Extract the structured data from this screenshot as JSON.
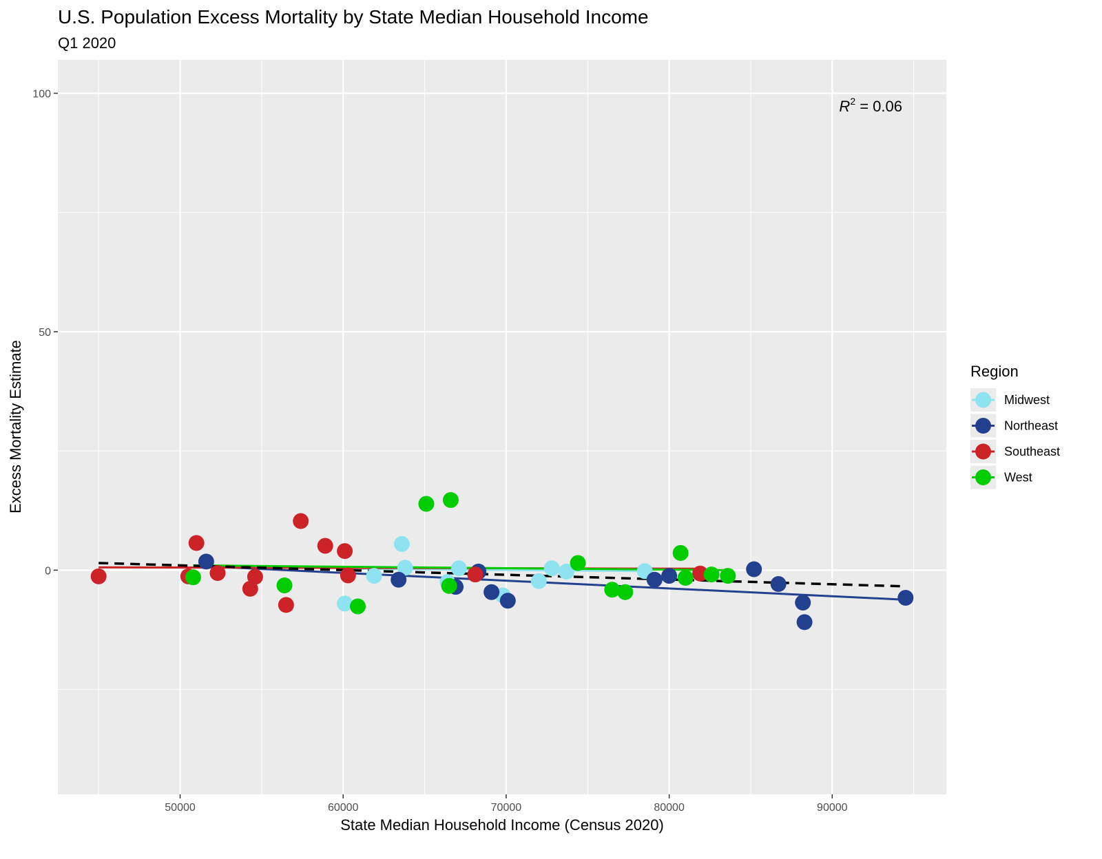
{
  "chart_data": {
    "type": "scatter",
    "title": "U.S. Population Excess Mortality by State Median Household Income",
    "subtitle": "Q1 2020",
    "xlabel": "State Median Household Income (Census 2020)",
    "ylabel": "Excess Mortality Estimate",
    "xlim": [
      42500,
      97000
    ],
    "ylim": [
      -47,
      107
    ],
    "xticks": [
      50000,
      60000,
      70000,
      80000,
      90000
    ],
    "yticks": [
      0,
      50,
      100
    ],
    "grid": true,
    "legend": {
      "title": "Region",
      "position": "right"
    },
    "annotation": {
      "base": "R",
      "exponent": "2",
      "text": " = 0.06"
    },
    "series": [
      {
        "name": "Midwest",
        "color": "#8fe3f0",
        "points": [
          {
            "x": 60100,
            "y": -7
          },
          {
            "x": 61900,
            "y": -1.2
          },
          {
            "x": 63600,
            "y": 5.5
          },
          {
            "x": 63800,
            "y": 0.5
          },
          {
            "x": 66400,
            "y": -2.5
          },
          {
            "x": 67100,
            "y": 0.4
          },
          {
            "x": 69800,
            "y": -5.3
          },
          {
            "x": 72000,
            "y": -2.3
          },
          {
            "x": 72800,
            "y": 0.4
          },
          {
            "x": 73700,
            "y": -0.3
          },
          {
            "x": 78500,
            "y": -0.2
          }
        ],
        "fit": {
          "x": [
            60000,
            78500
          ],
          "y": [
            0.3,
            -0.2
          ]
        }
      },
      {
        "name": "Northeast",
        "color": "#23408e",
        "points": [
          {
            "x": 51600,
            "y": 1.8
          },
          {
            "x": 63400,
            "y": -2
          },
          {
            "x": 66900,
            "y": -3.5
          },
          {
            "x": 68300,
            "y": -0.3
          },
          {
            "x": 69100,
            "y": -4.6
          },
          {
            "x": 70100,
            "y": -6.4
          },
          {
            "x": 79100,
            "y": -2
          },
          {
            "x": 80000,
            "y": -1.2
          },
          {
            "x": 85200,
            "y": 0.2
          },
          {
            "x": 86700,
            "y": -2.9
          },
          {
            "x": 88200,
            "y": -6.8
          },
          {
            "x": 88300,
            "y": -10.9
          },
          {
            "x": 94500,
            "y": -5.8
          }
        ],
        "fit": {
          "x": [
            51600,
            94500
          ],
          "y": [
            0.8,
            -6.2
          ]
        }
      },
      {
        "name": "Southeast",
        "color": "#cc2329",
        "points": [
          {
            "x": 45000,
            "y": -1.3
          },
          {
            "x": 50500,
            "y": -1.3
          },
          {
            "x": 51000,
            "y": 5.7
          },
          {
            "x": 52300,
            "y": -0.6
          },
          {
            "x": 54300,
            "y": -3.9
          },
          {
            "x": 54600,
            "y": -1.4
          },
          {
            "x": 56500,
            "y": -7.3
          },
          {
            "x": 57400,
            "y": 10.3
          },
          {
            "x": 58900,
            "y": 5.1
          },
          {
            "x": 60100,
            "y": 4
          },
          {
            "x": 60300,
            "y": -1.1
          },
          {
            "x": 68100,
            "y": -0.9
          },
          {
            "x": 81900,
            "y": -0.7
          }
        ],
        "fit": {
          "x": [
            45000,
            81900
          ],
          "y": [
            0.6,
            0.3
          ]
        }
      },
      {
        "name": "West",
        "color": "#00cc00",
        "points": [
          {
            "x": 50800,
            "y": -1.5
          },
          {
            "x": 56400,
            "y": -3.2
          },
          {
            "x": 60900,
            "y": -7.6
          },
          {
            "x": 65100,
            "y": 13.9
          },
          {
            "x": 66600,
            "y": 14.7
          },
          {
            "x": 66500,
            "y": -3.3
          },
          {
            "x": 74400,
            "y": 1.5
          },
          {
            "x": 76500,
            "y": -4.1
          },
          {
            "x": 77300,
            "y": -4.6
          },
          {
            "x": 80700,
            "y": 3.6
          },
          {
            "x": 81000,
            "y": -1.6
          },
          {
            "x": 82600,
            "y": -0.9
          },
          {
            "x": 83600,
            "y": -1.2
          }
        ],
        "fit": {
          "x": [
            50800,
            83600
          ],
          "y": [
            1,
            0
          ]
        }
      }
    ],
    "overall_fit": {
      "x": [
        45000,
        94500
      ],
      "y": [
        1.5,
        -3.4
      ],
      "style": "dashed"
    }
  }
}
